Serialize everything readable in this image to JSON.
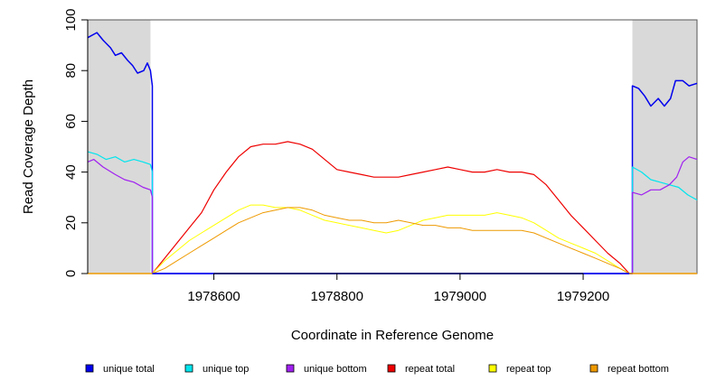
{
  "chart_data": {
    "type": "line",
    "title": "",
    "xlabel": "Coordinate in Reference Genome",
    "ylabel": "Read Coverage Depth",
    "xlim": [
      1978395,
      1979385
    ],
    "ylim": [
      0,
      100
    ],
    "x_ticks": [
      1978600,
      1978800,
      1979000,
      1979200
    ],
    "y_ticks": [
      0,
      20,
      40,
      60,
      80,
      100
    ],
    "shaded_regions": [
      {
        "from": 1978395,
        "to": 1978497,
        "color": "#d9d9d9"
      },
      {
        "from": 1979280,
        "to": 1979385,
        "color": "#d9d9d9"
      }
    ],
    "series": [
      {
        "name": "unique total",
        "color": "#0000ee",
        "width": 1.5,
        "points": [
          [
            1978395,
            93
          ],
          [
            1978410,
            95
          ],
          [
            1978420,
            92
          ],
          [
            1978432,
            89
          ],
          [
            1978440,
            86
          ],
          [
            1978450,
            87
          ],
          [
            1978460,
            84
          ],
          [
            1978468,
            82
          ],
          [
            1978476,
            79
          ],
          [
            1978486,
            80
          ],
          [
            1978492,
            83
          ],
          [
            1978497,
            80
          ],
          [
            1978500,
            74
          ],
          [
            1978500,
            0
          ],
          [
            1979280,
            0
          ],
          [
            1979280,
            74
          ],
          [
            1979290,
            73
          ],
          [
            1979300,
            70
          ],
          [
            1979310,
            66
          ],
          [
            1979322,
            69
          ],
          [
            1979332,
            66
          ],
          [
            1979342,
            69
          ],
          [
            1979350,
            76
          ],
          [
            1979362,
            76
          ],
          [
            1979372,
            74
          ],
          [
            1979385,
            75
          ]
        ]
      },
      {
        "name": "unique top",
        "color": "#00e5ee",
        "width": 1.2,
        "points": [
          [
            1978395,
            48
          ],
          [
            1978410,
            47
          ],
          [
            1978425,
            45
          ],
          [
            1978440,
            46
          ],
          [
            1978455,
            44
          ],
          [
            1978470,
            45
          ],
          [
            1978485,
            44
          ],
          [
            1978497,
            43
          ],
          [
            1978500,
            40
          ],
          [
            1978500,
            0
          ],
          [
            1979280,
            0
          ],
          [
            1979280,
            42
          ],
          [
            1979295,
            40
          ],
          [
            1979310,
            37
          ],
          [
            1979325,
            36
          ],
          [
            1979340,
            35
          ],
          [
            1979355,
            34
          ],
          [
            1979370,
            31
          ],
          [
            1979385,
            29
          ]
        ]
      },
      {
        "name": "unique bottom",
        "color": "#a020f0",
        "width": 1.2,
        "points": [
          [
            1978395,
            44
          ],
          [
            1978405,
            45
          ],
          [
            1978420,
            42
          ],
          [
            1978440,
            39
          ],
          [
            1978455,
            37
          ],
          [
            1978470,
            36
          ],
          [
            1978485,
            34
          ],
          [
            1978497,
            33
          ],
          [
            1978500,
            30
          ],
          [
            1978500,
            0
          ],
          [
            1979280,
            0
          ],
          [
            1979280,
            32
          ],
          [
            1979295,
            31
          ],
          [
            1979310,
            33
          ],
          [
            1979325,
            33
          ],
          [
            1979340,
            35
          ],
          [
            1979352,
            38
          ],
          [
            1979362,
            44
          ],
          [
            1979372,
            46
          ],
          [
            1979385,
            45
          ]
        ]
      },
      {
        "name": "repeat total",
        "color": "#ee0000",
        "width": 1.2,
        "points": [
          [
            1978500,
            0
          ],
          [
            1978520,
            6
          ],
          [
            1978540,
            12
          ],
          [
            1978560,
            18
          ],
          [
            1978580,
            24
          ],
          [
            1978600,
            33
          ],
          [
            1978620,
            40
          ],
          [
            1978640,
            46
          ],
          [
            1978660,
            50
          ],
          [
            1978680,
            51
          ],
          [
            1978700,
            51
          ],
          [
            1978720,
            52
          ],
          [
            1978740,
            51
          ],
          [
            1978760,
            49
          ],
          [
            1978780,
            45
          ],
          [
            1978800,
            41
          ],
          [
            1978820,
            40
          ],
          [
            1978840,
            39
          ],
          [
            1978860,
            38
          ],
          [
            1978880,
            38
          ],
          [
            1978900,
            38
          ],
          [
            1978920,
            39
          ],
          [
            1978940,
            40
          ],
          [
            1978960,
            41
          ],
          [
            1978980,
            42
          ],
          [
            1979000,
            41
          ],
          [
            1979020,
            40
          ],
          [
            1979040,
            40
          ],
          [
            1979060,
            41
          ],
          [
            1979080,
            40
          ],
          [
            1979100,
            40
          ],
          [
            1979120,
            39
          ],
          [
            1979140,
            35
          ],
          [
            1979160,
            29
          ],
          [
            1979180,
            23
          ],
          [
            1979200,
            18
          ],
          [
            1979220,
            13
          ],
          [
            1979240,
            8
          ],
          [
            1979260,
            4
          ],
          [
            1979275,
            0
          ]
        ]
      },
      {
        "name": "repeat top",
        "color": "#ffff00",
        "width": 1.0,
        "points": [
          [
            1978500,
            0
          ],
          [
            1978520,
            5
          ],
          [
            1978540,
            9
          ],
          [
            1978560,
            13
          ],
          [
            1978580,
            16
          ],
          [
            1978600,
            19
          ],
          [
            1978620,
            22
          ],
          [
            1978640,
            25
          ],
          [
            1978660,
            27
          ],
          [
            1978680,
            27
          ],
          [
            1978700,
            26
          ],
          [
            1978720,
            26
          ],
          [
            1978740,
            25
          ],
          [
            1978760,
            23
          ],
          [
            1978780,
            21
          ],
          [
            1978800,
            20
          ],
          [
            1978820,
            19
          ],
          [
            1978840,
            18
          ],
          [
            1978860,
            17
          ],
          [
            1978880,
            16
          ],
          [
            1978900,
            17
          ],
          [
            1978920,
            19
          ],
          [
            1978940,
            21
          ],
          [
            1978960,
            22
          ],
          [
            1978980,
            23
          ],
          [
            1979000,
            23
          ],
          [
            1979020,
            23
          ],
          [
            1979040,
            23
          ],
          [
            1979060,
            24
          ],
          [
            1979080,
            23
          ],
          [
            1979100,
            22
          ],
          [
            1979120,
            20
          ],
          [
            1979140,
            17
          ],
          [
            1979160,
            14
          ],
          [
            1979180,
            12
          ],
          [
            1979200,
            10
          ],
          [
            1979220,
            8
          ],
          [
            1979240,
            5
          ],
          [
            1979260,
            2
          ],
          [
            1979275,
            0
          ]
        ]
      },
      {
        "name": "repeat bottom",
        "color": "#ee9a00",
        "width": 1.0,
        "points": [
          [
            1978500,
            0
          ],
          [
            1978520,
            2
          ],
          [
            1978540,
            5
          ],
          [
            1978560,
            8
          ],
          [
            1978580,
            11
          ],
          [
            1978600,
            14
          ],
          [
            1978620,
            17
          ],
          [
            1978640,
            20
          ],
          [
            1978660,
            22
          ],
          [
            1978680,
            24
          ],
          [
            1978700,
            25
          ],
          [
            1978720,
            26
          ],
          [
            1978740,
            26
          ],
          [
            1978760,
            25
          ],
          [
            1978780,
            23
          ],
          [
            1978800,
            22
          ],
          [
            1978820,
            21
          ],
          [
            1978840,
            21
          ],
          [
            1978860,
            20
          ],
          [
            1978880,
            20
          ],
          [
            1978900,
            21
          ],
          [
            1978920,
            20
          ],
          [
            1978940,
            19
          ],
          [
            1978960,
            19
          ],
          [
            1978980,
            18
          ],
          [
            1979000,
            18
          ],
          [
            1979020,
            17
          ],
          [
            1979040,
            17
          ],
          [
            1979060,
            17
          ],
          [
            1979080,
            17
          ],
          [
            1979100,
            17
          ],
          [
            1979120,
            16
          ],
          [
            1979140,
            14
          ],
          [
            1979160,
            12
          ],
          [
            1979180,
            10
          ],
          [
            1979200,
            8
          ],
          [
            1979220,
            6
          ],
          [
            1979240,
            4
          ],
          [
            1979260,
            2
          ],
          [
            1979275,
            0
          ]
        ]
      }
    ],
    "baseline_series": [
      {
        "name": "unique baseline",
        "color": "#0000ee",
        "from": 1978500,
        "to": 1979280,
        "value": 0
      },
      {
        "name": "repeat bottom baseline left",
        "color": "#ee9a00",
        "from": 1978395,
        "to": 1978500,
        "value": 0
      },
      {
        "name": "repeat bottom baseline right",
        "color": "#ee9a00",
        "from": 1979275,
        "to": 1979385,
        "value": 0
      }
    ],
    "legend": [
      {
        "label": "unique total",
        "color": "#0000ee"
      },
      {
        "label": "unique top",
        "color": "#00e5ee"
      },
      {
        "label": "unique bottom",
        "color": "#a020f0"
      },
      {
        "label": "repeat total",
        "color": "#ee0000"
      },
      {
        "label": "repeat top",
        "color": "#ffff00"
      },
      {
        "label": "repeat bottom",
        "color": "#ee9a00"
      }
    ],
    "legend_position": "bottom"
  }
}
